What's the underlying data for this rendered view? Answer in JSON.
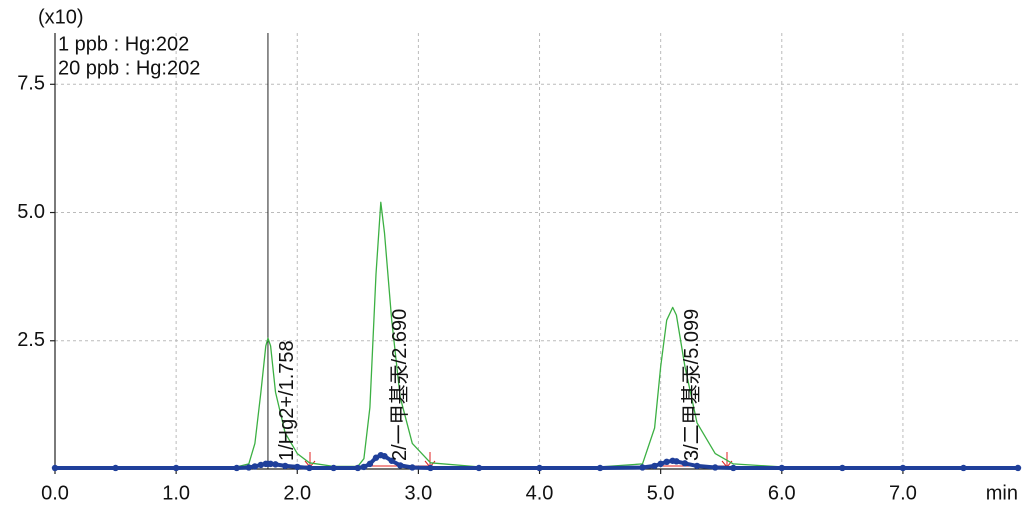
{
  "chart_data": {
    "type": "line",
    "y_multiplier_label": "(x10)",
    "x_label": "min",
    "xlim": [
      0,
      7.95
    ],
    "ylim": [
      0,
      8.5
    ],
    "xticks": [
      {
        "value": 0,
        "label": "0.0"
      },
      {
        "value": 1,
        "label": "1.0"
      },
      {
        "value": 2,
        "label": "2.0"
      },
      {
        "value": 3,
        "label": "3.0"
      },
      {
        "value": 4,
        "label": "4.0"
      },
      {
        "value": 5,
        "label": "5.0"
      },
      {
        "value": 6,
        "label": "6.0"
      },
      {
        "value": 7,
        "label": "7.0"
      }
    ],
    "yticks": [
      2.5,
      {
        "value": 5,
        "label": "5.0"
      },
      7.5
    ],
    "grid": true,
    "x": [
      0.0,
      0.5,
      1.0,
      1.5,
      1.6,
      1.65,
      1.7,
      1.74,
      1.758,
      1.78,
      1.82,
      1.9,
      2.0,
      2.1,
      2.3,
      2.5,
      2.55,
      2.6,
      2.65,
      2.69,
      2.72,
      2.78,
      2.85,
      2.95,
      3.1,
      3.5,
      4.0,
      4.5,
      4.85,
      4.95,
      5.0,
      5.05,
      5.099,
      5.13,
      5.2,
      5.3,
      5.45,
      5.6,
      6.0,
      6.5,
      7.0,
      7.5,
      7.95
    ],
    "series": [
      {
        "name": "1 ppb : Hg:202",
        "color": "#1f3f9a",
        "values": [
          0.02,
          0.02,
          0.02,
          0.02,
          0.03,
          0.05,
          0.08,
          0.1,
          0.1,
          0.1,
          0.09,
          0.06,
          0.04,
          0.02,
          0.02,
          0.02,
          0.04,
          0.1,
          0.22,
          0.27,
          0.25,
          0.16,
          0.07,
          0.03,
          0.02,
          0.02,
          0.02,
          0.02,
          0.03,
          0.06,
          0.1,
          0.14,
          0.16,
          0.15,
          0.11,
          0.06,
          0.03,
          0.02,
          0.02,
          0.02,
          0.02,
          0.02,
          0.02
        ]
      },
      {
        "name": "20  ppb : Hg:202",
        "color": "#3cb043",
        "values": [
          0.03,
          0.03,
          0.03,
          0.04,
          0.1,
          0.5,
          1.5,
          2.4,
          2.55,
          2.4,
          1.5,
          0.7,
          0.3,
          0.12,
          0.05,
          0.05,
          0.2,
          1.2,
          3.8,
          5.2,
          4.6,
          2.9,
          1.4,
          0.5,
          0.12,
          0.04,
          0.04,
          0.04,
          0.1,
          0.8,
          2.0,
          2.9,
          3.15,
          3.0,
          2.0,
          0.9,
          0.3,
          0.1,
          0.04,
          0.04,
          0.04,
          0.04,
          0.04
        ]
      }
    ],
    "annotations": [
      "1/Hg2+/1.758",
      "2/一甲基汞/2.690",
      "3/二甲基汞/5.099"
    ]
  }
}
